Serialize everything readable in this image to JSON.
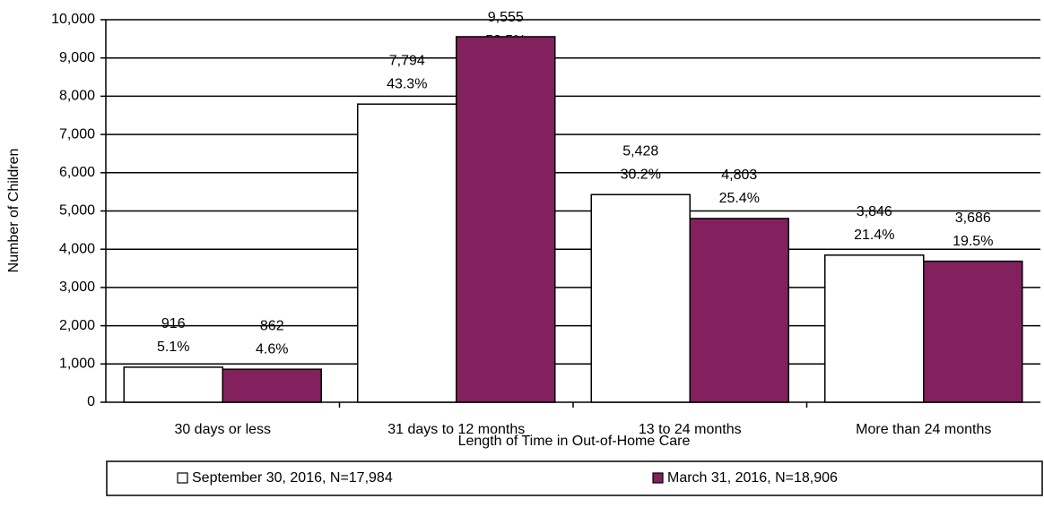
{
  "chart_data": {
    "type": "bar",
    "x_label": "Length of Time in Out-of-Home Care",
    "y_label": "Number of Children",
    "categories": [
      "30 days or less",
      "31 days to 12 months",
      "13 to 24 months",
      "More than 24 months"
    ],
    "series": [
      {
        "name": "September 30, 2016, N=17,984",
        "color": "#ffffff",
        "values": [
          916,
          7794,
          5428,
          3846
        ],
        "value_labels": [
          "916",
          "7,794",
          "5,428",
          "3,846"
        ],
        "percents": [
          5.1,
          43.3,
          30.2,
          21.4
        ],
        "percent_labels": [
          "5.1%",
          "43.3%",
          "30.2%",
          "21.4%"
        ]
      },
      {
        "name": "March 31, 2016, N=18,906",
        "color": "#82215e",
        "values": [
          862,
          9555,
          4803,
          3686
        ],
        "value_labels": [
          "862",
          "9,555",
          "4,803",
          "3,686"
        ],
        "percents": [
          4.6,
          50.5,
          25.4,
          19.5
        ],
        "percent_labels": [
          "4.6%",
          "50.5%",
          "25.4%",
          "19.5%"
        ]
      }
    ],
    "ylim": [
      0,
      10000
    ],
    "yticks": [
      0,
      {
        "value": 1000,
        "label": "1,000"
      },
      {
        "value": 2000,
        "label": "2,000"
      },
      {
        "value": 3000,
        "label": "3,000"
      },
      {
        "value": 4000,
        "label": "4,000"
      },
      {
        "value": 5000,
        "label": "5,000"
      },
      {
        "value": 6000,
        "label": "6,000"
      },
      {
        "value": 7000,
        "label": "7,000"
      },
      {
        "value": 8000,
        "label": "8,000"
      },
      {
        "value": 9000,
        "label": "9,000"
      },
      {
        "value": 10000,
        "label": "10,000"
      }
    ],
    "grid": true,
    "legend": "bottom"
  }
}
